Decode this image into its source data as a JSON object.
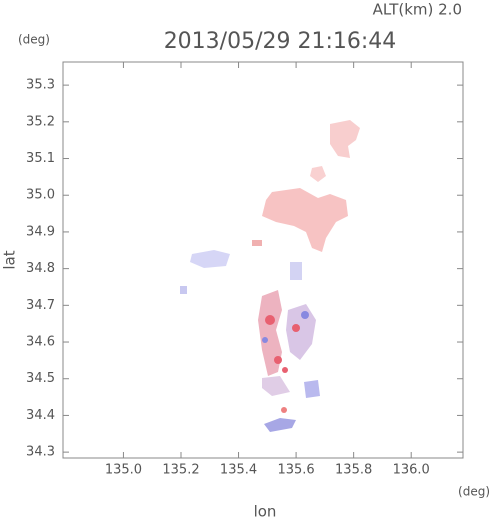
{
  "chart_data": {
    "type": "map",
    "title": "2013/05/29 21:16:44",
    "altitude_label": "ALT(km) 2.0",
    "x_label": "lon",
    "y_label": "lat",
    "x_unit": "(deg)",
    "y_unit": "(deg)",
    "xlim": [
      134.79,
      136.18
    ],
    "ylim": [
      34.284,
      35.363
    ],
    "xticks": [
      {
        "value": 135,
        "label": "135.0"
      },
      135.2,
      135.4,
      135.6,
      135.8,
      {
        "value": 136,
        "label": "136.0"
      }
    ],
    "yticks": [
      34.3,
      34.4,
      34.5,
      34.6,
      34.7,
      34.8,
      34.9,
      {
        "value": 35,
        "label": "35.0"
      },
      35.1,
      35.2,
      35.3
    ]
  }
}
